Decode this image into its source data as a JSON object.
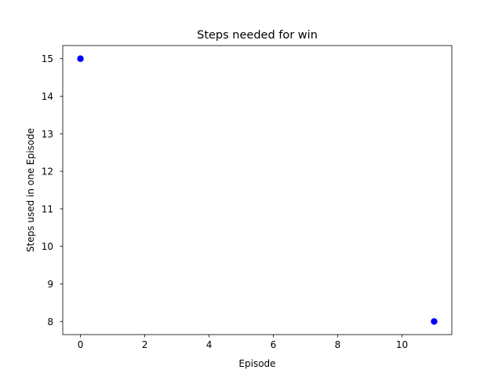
{
  "chart_data": {
    "type": "scatter",
    "title": "Steps needed for win",
    "xlabel": "Episode",
    "ylabel": "Steps used in one Episode",
    "xlim": [
      -0.55,
      11.55
    ],
    "ylim": [
      7.65,
      15.35
    ],
    "x_ticks": [
      0,
      2,
      4,
      6,
      8,
      10
    ],
    "y_ticks": [
      8,
      9,
      10,
      11,
      12,
      13,
      14,
      15
    ],
    "grid": false,
    "legend": "none",
    "marker_color": "#0000ff",
    "series": [
      {
        "x": [
          0,
          11
        ],
        "y": [
          15,
          8
        ]
      }
    ]
  }
}
